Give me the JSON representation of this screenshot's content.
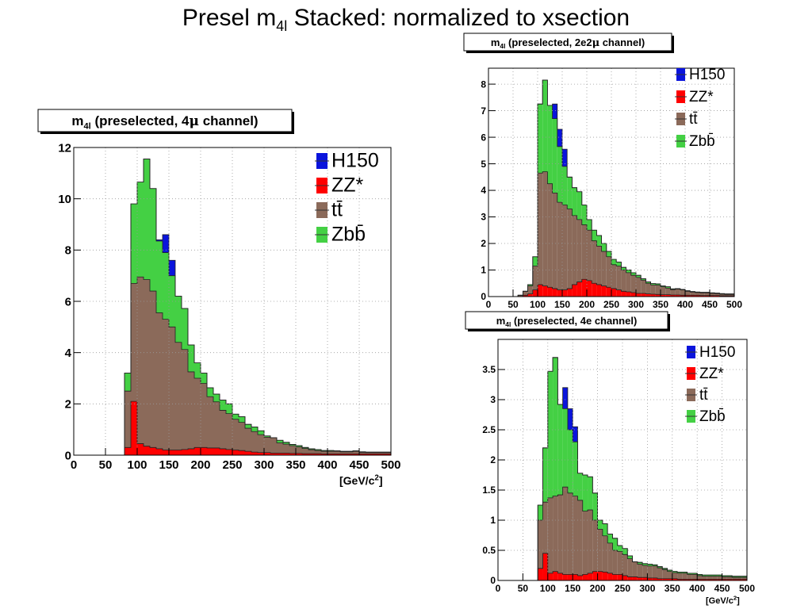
{
  "slide": {
    "title_pre": "Presel m",
    "title_sub": "4l",
    "title_post": " Stacked: normalized to xsection"
  },
  "colors": {
    "H150": "#0a14dc",
    "ZZ*": "#ff0000",
    "ttbar": "#8b6a5a",
    "Zbbbar": "#44d044",
    "grid": "#9a9a9a"
  },
  "chart_data": [
    {
      "type": "bar",
      "stacked": true,
      "title": "m4l (preselected, 4μ channel)",
      "xlabel": "[GeV/c2]",
      "xlim": [
        0,
        500
      ],
      "ylim": [
        0,
        12
      ],
      "bin_width": 10,
      "x_ticks": [
        0,
        50,
        100,
        150,
        200,
        250,
        300,
        350,
        400,
        450,
        500
      ],
      "y_ticks": [
        0,
        2,
        4,
        6,
        8,
        10,
        12
      ],
      "grid": true,
      "legend_position": "top-right",
      "legend": [
        "H150",
        "ZZ*",
        "tt̄",
        "Zbb̄"
      ],
      "x": [
        5,
        15,
        25,
        35,
        45,
        55,
        65,
        75,
        85,
        95,
        105,
        115,
        125,
        135,
        145,
        155,
        165,
        175,
        185,
        195,
        205,
        215,
        225,
        235,
        245,
        255,
        265,
        275,
        285,
        295,
        305,
        315,
        325,
        335,
        345,
        355,
        365,
        375,
        385,
        395,
        405,
        415,
        425,
        435,
        445,
        455,
        465,
        475,
        485,
        495
      ],
      "series": [
        {
          "name": "ZZ*",
          "values": [
            0,
            0,
            0,
            0,
            0,
            0,
            0,
            0,
            0.3,
            2.1,
            0.45,
            0.35,
            0.3,
            0.25,
            0.2,
            0.2,
            0.2,
            0.22,
            0.25,
            0.3,
            0.3,
            0.28,
            0.28,
            0.25,
            0.22,
            0.2,
            0.18,
            0.15,
            0.12,
            0.1,
            0.1,
            0.08,
            0.08,
            0.08,
            0.07,
            0.07,
            0.06,
            0.06,
            0.06,
            0.05,
            0.05,
            0.05,
            0.05,
            0.05,
            0.05,
            0.05,
            0.05,
            0.05,
            0.05,
            0.05
          ]
        },
        {
          "name": "tt̄",
          "values": [
            0,
            0,
            0,
            0,
            0,
            0,
            0,
            0,
            2.2,
            4.6,
            6.5,
            6.5,
            6.1,
            5.3,
            5.1,
            4.8,
            4.2,
            3.9,
            3.0,
            2.7,
            2.5,
            2.0,
            1.8,
            1.5,
            1.4,
            1.2,
            1.1,
            0.9,
            0.8,
            0.7,
            0.6,
            0.6,
            0.4,
            0.35,
            0.3,
            0.25,
            0.2,
            0.15,
            0.12,
            0.1,
            0.1,
            0.1,
            0.08,
            0.08,
            0.1,
            0.06,
            0.05,
            0.05,
            0.05,
            0.05
          ]
        },
        {
          "name": "Zbb̄",
          "values": [
            0,
            0,
            0,
            0,
            0,
            0,
            0,
            0,
            0.7,
            3.1,
            3.7,
            4.7,
            4.0,
            2.8,
            2.6,
            2.0,
            1.8,
            1.6,
            1.05,
            0.6,
            0.4,
            0.35,
            0.3,
            0.4,
            0.38,
            0.2,
            0.22,
            0.15,
            0.18,
            0.15,
            0.05,
            0.0,
            0.1,
            0.07,
            0.05,
            0.05,
            0.04,
            0.04,
            0.04,
            0.03,
            0.03,
            0.02,
            0.02,
            0.02,
            0.02,
            0.02,
            0.02,
            0.02,
            0.02,
            0.02
          ]
        },
        {
          "name": "H150",
          "values": [
            0,
            0,
            0,
            0,
            0,
            0,
            0,
            0,
            0,
            0,
            0,
            0,
            0,
            0.05,
            0.7,
            0.6,
            0,
            0,
            0,
            0,
            0,
            0,
            0,
            0,
            0,
            0,
            0,
            0,
            0,
            0,
            0,
            0,
            0,
            0,
            0,
            0,
            0,
            0,
            0,
            0,
            0,
            0,
            0,
            0,
            0,
            0,
            0,
            0,
            0,
            0
          ]
        }
      ]
    },
    {
      "type": "bar",
      "stacked": true,
      "title": "m4l (preselected, 2e2μ channel)",
      "xlabel": "",
      "xlim": [
        0,
        500
      ],
      "ylim": [
        0,
        8.6
      ],
      "bin_width": 10,
      "x_ticks": [
        0,
        50,
        100,
        150,
        200,
        250,
        300,
        350,
        400,
        450,
        500
      ],
      "y_ticks": [
        0,
        1,
        2,
        3,
        4,
        5,
        6,
        7,
        8
      ],
      "grid": true,
      "legend_position": "top-right",
      "legend": [
        "H150",
        "ZZ*",
        "tt̄",
        "Zbb̄"
      ],
      "x": [
        5,
        15,
        25,
        35,
        45,
        55,
        65,
        75,
        85,
        95,
        105,
        115,
        125,
        135,
        145,
        155,
        165,
        175,
        185,
        195,
        205,
        215,
        225,
        235,
        245,
        255,
        265,
        275,
        285,
        295,
        305,
        315,
        325,
        335,
        345,
        355,
        365,
        375,
        385,
        395,
        405,
        415,
        425,
        435,
        445,
        455,
        465,
        475,
        485,
        495
      ],
      "series": [
        {
          "name": "ZZ*",
          "values": [
            0,
            0,
            0,
            0,
            0,
            0,
            0,
            0.05,
            0.1,
            0.25,
            0.45,
            0.4,
            0.35,
            0.3,
            0.25,
            0.25,
            0.3,
            0.45,
            0.55,
            0.65,
            0.6,
            0.5,
            0.45,
            0.4,
            0.35,
            0.3,
            0.25,
            0.2,
            0.18,
            0.15,
            0.12,
            0.12,
            0.1,
            0.09,
            0.08,
            0.07,
            0.07,
            0.06,
            0.06,
            0.05,
            0.05,
            0.05,
            0.05,
            0.04,
            0.04,
            0.04,
            0.04,
            0.03,
            0.03,
            0.03
          ]
        },
        {
          "name": "tt̄",
          "values": [
            0,
            0,
            0,
            0,
            0,
            0,
            0.05,
            0.15,
            0.3,
            0.9,
            4.2,
            4.3,
            3.9,
            3.6,
            3.3,
            3.2,
            3.0,
            2.6,
            2.35,
            2.05,
            1.9,
            1.6,
            1.45,
            1.3,
            1.15,
            0.9,
            0.9,
            0.8,
            0.72,
            0.65,
            0.6,
            0.5,
            0.4,
            0.35,
            0.35,
            0.3,
            0.25,
            0.2,
            0.22,
            0.2,
            0.15,
            0.12,
            0.1,
            0.1,
            0.1,
            0.08,
            0.07,
            0.06,
            0.05,
            0.05
          ]
        },
        {
          "name": "Zbb̄",
          "values": [
            0,
            0,
            0,
            0,
            0,
            0,
            0,
            0,
            0.05,
            0.35,
            2.6,
            3.45,
            2.95,
            2.8,
            2.1,
            1.45,
            1.2,
            1.05,
            1.05,
            0.75,
            0.4,
            0.4,
            0.4,
            0.3,
            0.2,
            0.2,
            0.15,
            0.1,
            0.1,
            0.1,
            0.08,
            0.05,
            0.05,
            0.05,
            0.05,
            0.03,
            0.05,
            0.03,
            0.02,
            0.02,
            0.02,
            0.02,
            0.02,
            0.02,
            0.02,
            0.02,
            0.02,
            0.02,
            0.02,
            0.02
          ]
        },
        {
          "name": "H150",
          "values": [
            0,
            0,
            0,
            0,
            0,
            0,
            0,
            0,
            0,
            0,
            0,
            0,
            0,
            0.55,
            0.65,
            0.65,
            0,
            0,
            0,
            0,
            0,
            0,
            0,
            0,
            0,
            0,
            0,
            0,
            0,
            0,
            0,
            0,
            0,
            0,
            0,
            0,
            0,
            0,
            0,
            0,
            0,
            0,
            0,
            0,
            0,
            0,
            0,
            0,
            0,
            0
          ]
        }
      ]
    },
    {
      "type": "bar",
      "stacked": true,
      "title": "m4l (preselected, 4e channel)",
      "xlabel": "[GeV/c2]",
      "xlim": [
        0,
        500
      ],
      "ylim": [
        0,
        4.0
      ],
      "bin_width": 10,
      "x_ticks": [
        0,
        50,
        100,
        150,
        200,
        250,
        300,
        350,
        400,
        450,
        500
      ],
      "y_ticks": [
        0,
        0.5,
        1,
        1.5,
        2,
        2.5,
        3,
        3.5
      ],
      "grid": true,
      "legend_position": "top-right",
      "legend": [
        "H150",
        "ZZ*",
        "tt̄",
        "Zbb̄"
      ],
      "x": [
        5,
        15,
        25,
        35,
        45,
        55,
        65,
        75,
        85,
        95,
        105,
        115,
        125,
        135,
        145,
        155,
        165,
        175,
        185,
        195,
        205,
        215,
        225,
        235,
        245,
        255,
        265,
        275,
        285,
        295,
        305,
        315,
        325,
        335,
        345,
        355,
        365,
        375,
        385,
        395,
        405,
        415,
        425,
        435,
        445,
        455,
        465,
        475,
        485,
        495
      ],
      "series": [
        {
          "name": "ZZ*",
          "values": [
            0,
            0,
            0,
            0,
            0,
            0,
            0,
            0,
            0.2,
            0.45,
            0.12,
            0.15,
            0.12,
            0.1,
            0.1,
            0.1,
            0.08,
            0.1,
            0.12,
            0.15,
            0.15,
            0.14,
            0.12,
            0.1,
            0.1,
            0.08,
            0.06,
            0.06,
            0.05,
            0.05,
            0.04,
            0.04,
            0.03,
            0.03,
            0.03,
            0.03,
            0.02,
            0.02,
            0.02,
            0.02,
            0.02,
            0.02,
            0.02,
            0.02,
            0.02,
            0.02,
            0.02,
            0.02,
            0.02,
            0.02
          ]
        },
        {
          "name": "tt̄",
          "values": [
            0,
            0,
            0,
            0,
            0,
            0,
            0,
            0,
            0.8,
            0.85,
            1.25,
            1.25,
            1.3,
            1.45,
            1.35,
            1.3,
            1.25,
            1.05,
            1.05,
            0.85,
            0.7,
            0.6,
            0.5,
            0.4,
            0.38,
            0.35,
            0.3,
            0.25,
            0.22,
            0.2,
            0.2,
            0.2,
            0.18,
            0.15,
            0.12,
            0.1,
            0.1,
            0.1,
            0.08,
            0.08,
            0.06,
            0.05,
            0.05,
            0.05,
            0.05,
            0.04,
            0.04,
            0.03,
            0.03,
            0.03
          ]
        },
        {
          "name": "Zbb̄",
          "values": [
            0,
            0,
            0,
            0,
            0,
            0,
            0,
            0,
            0.25,
            0.9,
            2.1,
            2.3,
            1.5,
            1.3,
            1.05,
            0.9,
            0.45,
            0.6,
            0.55,
            0.45,
            0.15,
            0.2,
            0.15,
            0.2,
            0.1,
            0.1,
            0.05,
            0.0,
            0.03,
            0.03,
            0.03,
            0.02,
            0.02,
            0.02,
            0.02,
            0.02,
            0.02,
            0.02,
            0.02,
            0.02,
            0.02,
            0.02,
            0.02,
            0.02,
            0.02,
            0.02,
            0.02,
            0.02,
            0.02,
            0.02
          ]
        },
        {
          "name": "H150",
          "values": [
            0,
            0,
            0,
            0,
            0,
            0,
            0,
            0,
            0,
            0,
            0,
            0,
            0,
            0.35,
            0.35,
            0.25,
            0,
            0,
            0,
            0,
            0,
            0,
            0,
            0,
            0,
            0,
            0,
            0,
            0,
            0,
            0,
            0,
            0,
            0,
            0,
            0,
            0,
            0,
            0,
            0,
            0,
            0,
            0,
            0,
            0,
            0,
            0,
            0,
            0,
            0
          ]
        }
      ]
    }
  ],
  "panels": [
    {
      "title_main": "m",
      "title_sub": "4l",
      "title_rest": " (preselected, 4",
      "title_greek": "μ",
      "title_end": " channel)",
      "xunit_main": "[GeV/c",
      "xunit_sup": "2",
      "xunit_end": "]"
    },
    {
      "title_main": "m",
      "title_sub": "4l",
      "title_rest": " (preselected, 2e2",
      "title_greek": "μ",
      "title_end": " channel)",
      "xunit_main": "",
      "xunit_sup": "",
      "xunit_end": ""
    },
    {
      "title_main": "m",
      "title_sub": "4l",
      "title_rest": " (preselected, 4e channel)",
      "title_greek": "",
      "title_end": "",
      "xunit_main": "[GeV/c",
      "xunit_sup": "2",
      "xunit_end": "]"
    }
  ],
  "legend_labels": [
    {
      "key": "H150",
      "label": "H150"
    },
    {
      "key": "ZZ*",
      "label": "ZZ*"
    },
    {
      "key": "ttbar",
      "label": "tt̄"
    },
    {
      "key": "Zbbbar",
      "label": "Zbb̄"
    }
  ]
}
